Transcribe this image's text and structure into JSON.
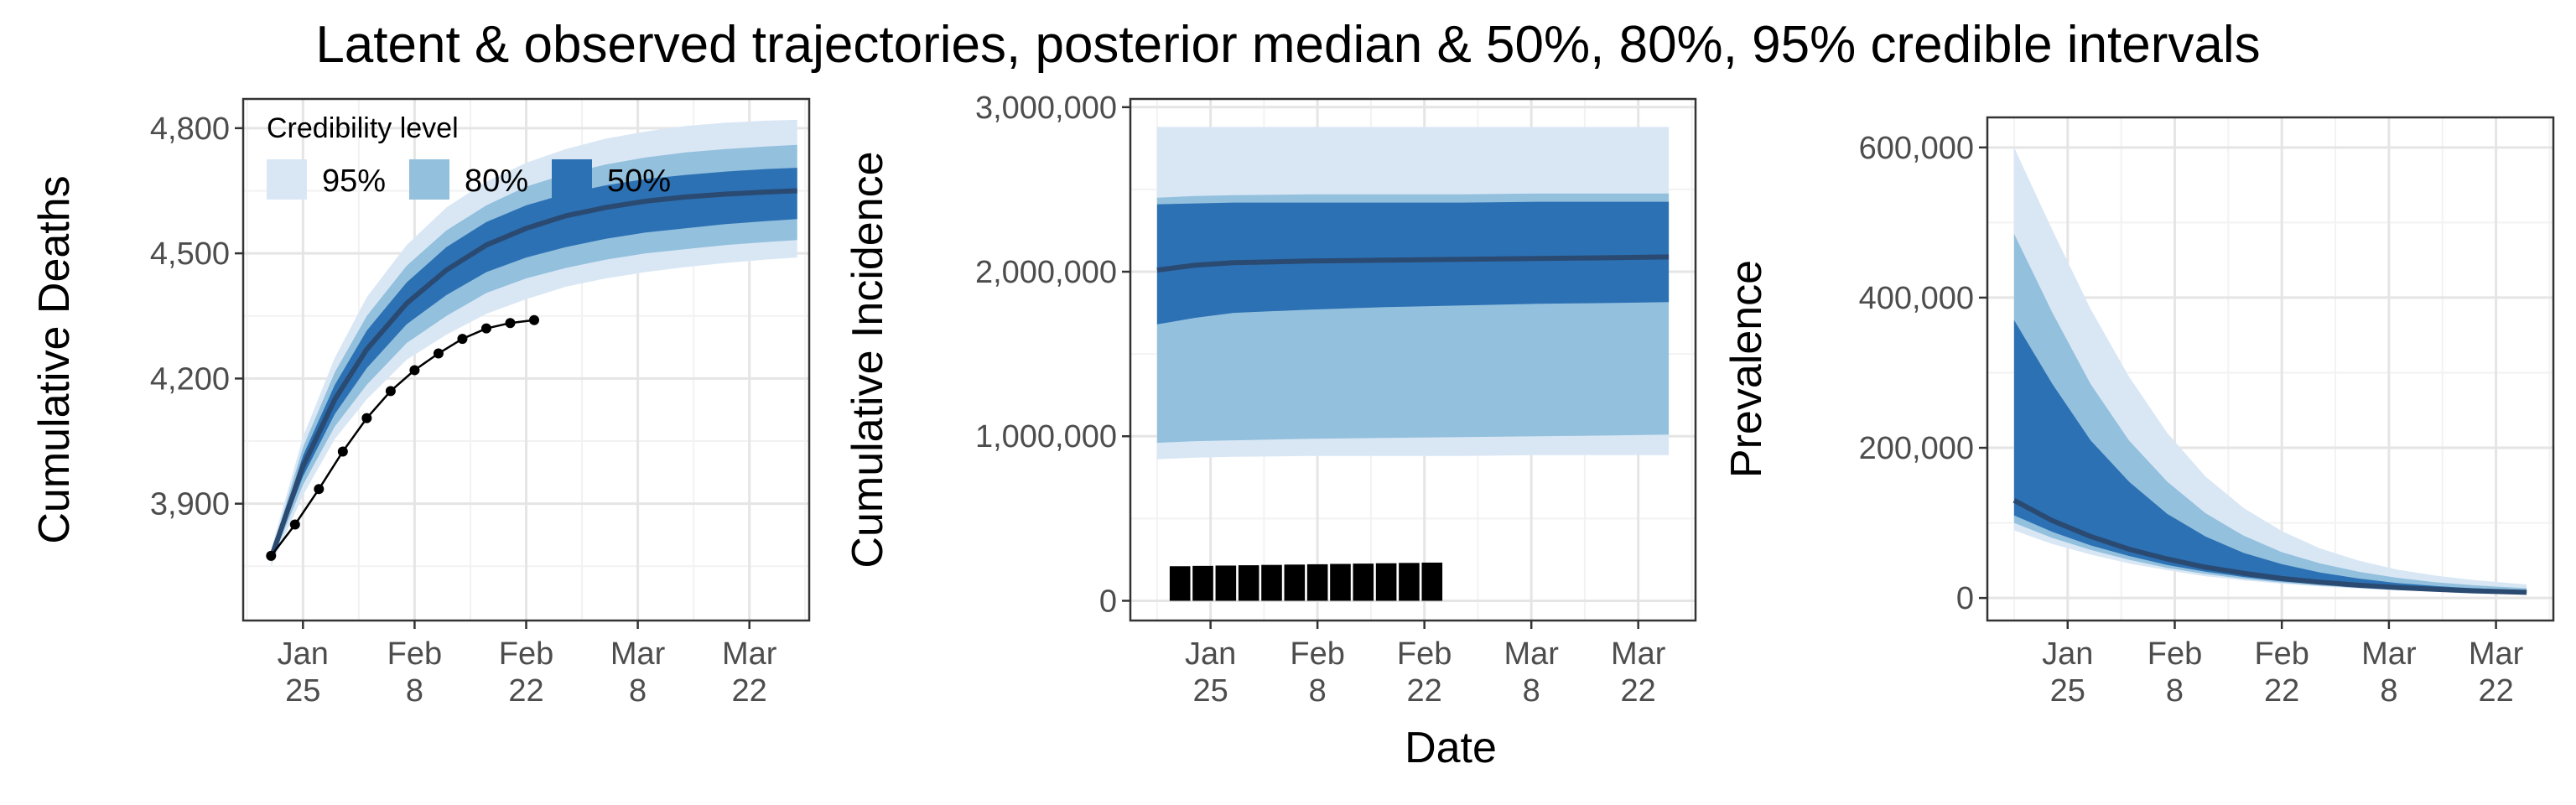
{
  "title": "Latent & observed trajectories, posterior median & 50%, 80%, 95% credible intervals",
  "colors": {
    "band95": "#d9e7f5",
    "band80": "#93c0dd",
    "band50": "#2c71b4",
    "median": "#2a4a72",
    "observed": "#000000",
    "grid_major": "#e5e5e5",
    "grid_minor": "#f2f2f2",
    "axis": "#333333"
  },
  "legend": {
    "title": "Credibility level",
    "items": [
      "95%",
      "80%",
      "50%"
    ]
  },
  "chart_data": [
    {
      "type": "area",
      "panel": "cumulative-deaths",
      "ylabel": "Cumulative Deaths",
      "xlabel": "",
      "x_tick_labels": [
        [
          "Jan",
          "25"
        ],
        [
          "Feb",
          "8"
        ],
        [
          "Feb",
          "22"
        ],
        [
          "Mar",
          "8"
        ],
        [
          "Mar",
          "22"
        ]
      ],
      "x_ticks": [
        7,
        21,
        35,
        49,
        63
      ],
      "xlim": [
        -0.5,
        70.5
      ],
      "ylim": [
        3620,
        4870
      ],
      "y_ticks": [
        3900,
        4200,
        4500,
        4800
      ],
      "y_tick_labels": [
        "3,900",
        "4,200",
        "4,500",
        "4,800"
      ],
      "x": [
        3,
        7,
        11,
        15,
        20,
        25,
        30,
        35,
        40,
        45,
        50,
        55,
        60,
        65,
        69
      ],
      "median": [
        3770,
        3990,
        4150,
        4270,
        4380,
        4460,
        4520,
        4560,
        4590,
        4610,
        4625,
        4635,
        4642,
        4647,
        4650
      ],
      "band50": {
        "lower": [
          3765,
          3965,
          4115,
          4225,
          4330,
          4400,
          4455,
          4490,
          4515,
          4535,
          4550,
          4560,
          4570,
          4577,
          4582
        ],
        "upper": [
          3775,
          4015,
          4185,
          4315,
          4430,
          4515,
          4575,
          4615,
          4643,
          4663,
          4678,
          4688,
          4696,
          4702,
          4705
        ]
      },
      "band80": {
        "lower": [
          3760,
          3945,
          4085,
          4185,
          4285,
          4350,
          4405,
          4440,
          4465,
          4485,
          4500,
          4510,
          4520,
          4527,
          4532
        ],
        "upper": [
          3780,
          4035,
          4215,
          4350,
          4470,
          4555,
          4615,
          4660,
          4690,
          4713,
          4730,
          4742,
          4750,
          4756,
          4760
        ]
      },
      "band95": {
        "lower": [
          3750,
          3920,
          4055,
          4150,
          4245,
          4305,
          4355,
          4390,
          4420,
          4440,
          4455,
          4467,
          4477,
          4485,
          4490
        ],
        "upper": [
          3790,
          4060,
          4250,
          4395,
          4520,
          4610,
          4672,
          4717,
          4750,
          4775,
          4792,
          4805,
          4813,
          4818,
          4820
        ]
      },
      "observed": {
        "x": [
          3,
          6,
          9,
          12,
          15,
          18,
          21,
          24,
          27,
          30,
          33,
          36
        ],
        "y": [
          3775,
          3850,
          3935,
          4025,
          4105,
          4170,
          4220,
          4260,
          4295,
          4320,
          4333,
          4340
        ]
      }
    },
    {
      "type": "area",
      "panel": "cumulative-incidence",
      "ylabel": "Cumulative Incidence",
      "xlabel": "Date",
      "x_tick_labels": [
        [
          "Jan",
          "25"
        ],
        [
          "Feb",
          "8"
        ],
        [
          "Feb",
          "22"
        ],
        [
          "Mar",
          "8"
        ],
        [
          "Mar",
          "22"
        ]
      ],
      "x_ticks": [
        7,
        21,
        35,
        49,
        63
      ],
      "xlim": [
        -3.5,
        70.5
      ],
      "ylim": [
        -120000,
        3050000
      ],
      "y_ticks": [
        0,
        1000000,
        2000000,
        3000000
      ],
      "y_tick_labels": [
        "0",
        "1,000,000",
        "2,000,000",
        "3,000,000"
      ],
      "x": [
        0,
        5,
        10,
        20,
        30,
        40,
        50,
        60,
        67
      ],
      "median": [
        2010000,
        2040000,
        2055000,
        2065000,
        2070000,
        2075000,
        2080000,
        2085000,
        2090000
      ],
      "band50": {
        "lower": [
          1680000,
          1720000,
          1750000,
          1770000,
          1785000,
          1795000,
          1805000,
          1810000,
          1815000
        ],
        "upper": [
          2410000,
          2415000,
          2420000,
          2420000,
          2420000,
          2420000,
          2425000,
          2425000,
          2425000
        ]
      },
      "band80": {
        "lower": [
          960000,
          970000,
          975000,
          985000,
          990000,
          995000,
          1000000,
          1005000,
          1010000
        ],
        "upper": [
          2450000,
          2460000,
          2465000,
          2470000,
          2470000,
          2470000,
          2475000,
          2475000,
          2475000
        ]
      },
      "band95": {
        "lower": [
          860000,
          870000,
          875000,
          880000,
          880000,
          880000,
          885000,
          885000,
          885000
        ],
        "upper": [
          2880000,
          2880000,
          2880000,
          2880000,
          2880000,
          2880000,
          2880000,
          2880000,
          2880000
        ]
      },
      "observed_bars": {
        "x": [
          3,
          6,
          9,
          12,
          15,
          18,
          21,
          24,
          27,
          30,
          33,
          36
        ],
        "y": [
          210000,
          212000,
          214000,
          216000,
          218000,
          220000,
          222000,
          224000,
          226000,
          228000,
          230000,
          232000
        ]
      }
    },
    {
      "type": "area",
      "panel": "prevalence",
      "ylabel": "Prevalence",
      "xlabel": "",
      "x_tick_labels": [
        [
          "Jan",
          "25"
        ],
        [
          "Feb",
          "8"
        ],
        [
          "Feb",
          "22"
        ],
        [
          "Mar",
          "8"
        ],
        [
          "Mar",
          "22"
        ]
      ],
      "x_ticks": [
        7,
        21,
        35,
        49,
        63
      ],
      "xlim": [
        -3.5,
        70.5
      ],
      "ylim": [
        -30000,
        640000
      ],
      "y_ticks": [
        0,
        200000,
        400000,
        600000
      ],
      "y_tick_labels": [
        "0",
        "200,000",
        "400,000",
        "600,000"
      ],
      "x": [
        0,
        5,
        10,
        15,
        20,
        25,
        30,
        35,
        40,
        45,
        50,
        55,
        60,
        67
      ],
      "median": [
        130000,
        103000,
        82000,
        65000,
        52000,
        41000,
        33000,
        26000,
        21000,
        17000,
        14000,
        11500,
        9500,
        7500
      ],
      "band50": {
        "lower": [
          110000,
          88000,
          70000,
          56000,
          44000,
          35000,
          28000,
          22000,
          18000,
          14500,
          12000,
          10000,
          8200,
          6500
        ],
        "upper": [
          370000,
          285000,
          210000,
          155000,
          112000,
          82000,
          60000,
          45000,
          34000,
          26000,
          20000,
          16000,
          13000,
          10000
        ]
      },
      "band80": {
        "lower": [
          100000,
          80000,
          64000,
          51000,
          40000,
          32000,
          25500,
          20500,
          16500,
          13500,
          11000,
          9300,
          7700,
          6000
        ],
        "upper": [
          485000,
          380000,
          285000,
          210000,
          155000,
          113000,
          83000,
          61000,
          46000,
          35000,
          27000,
          21000,
          17000,
          13000
        ]
      },
      "band95": {
        "lower": [
          90000,
          72000,
          58000,
          46000,
          37000,
          29000,
          23500,
          19000,
          15500,
          12500,
          10300,
          8700,
          7200,
          5600
        ],
        "upper": [
          600000,
          490000,
          385000,
          295000,
          220000,
          162000,
          120000,
          89000,
          66000,
          50000,
          38000,
          30000,
          24000,
          18000
        ]
      }
    }
  ]
}
